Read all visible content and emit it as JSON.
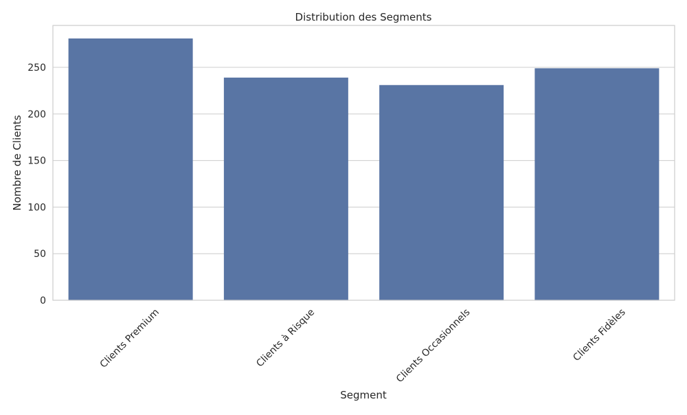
{
  "chart_data": {
    "type": "bar",
    "title": "Distribution des Segments",
    "xlabel": "Segment",
    "ylabel": "Nombre de Clients",
    "categories": [
      "Clients Premium",
      "Clients à Risque",
      "Clients Occasionnels",
      "Clients Fidèles"
    ],
    "values": [
      281,
      239,
      231,
      249
    ],
    "ylim": [
      0,
      295
    ],
    "yticks": [
      0,
      50,
      100,
      150,
      200,
      250
    ],
    "grid": "horizontal",
    "bar_color": "#5975a4",
    "xtick_rotation": 45
  }
}
